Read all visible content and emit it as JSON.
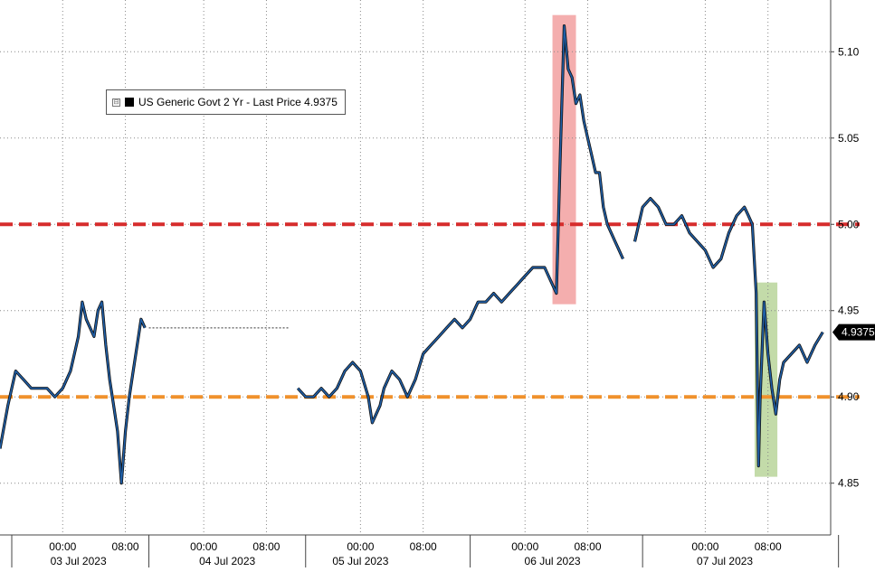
{
  "chart_data": {
    "type": "line",
    "series": [
      {
        "name": "US Generic Govt 2 Yr - Last Price 4.9375",
        "color": "#1f5fa8",
        "last_value_label": "4.9375",
        "segments": [
          [
            [
              0,
              4.87
            ],
            [
              1,
              4.895
            ],
            [
              2,
              4.915
            ],
            [
              3,
              4.91
            ],
            [
              4,
              4.905
            ],
            [
              5,
              4.905
            ],
            [
              6,
              4.905
            ],
            [
              7,
              4.9
            ],
            [
              8,
              4.905
            ],
            [
              9,
              4.915
            ],
            [
              10,
              4.935
            ],
            [
              10.5,
              4.955
            ],
            [
              11,
              4.945
            ],
            [
              11.5,
              4.94
            ],
            [
              12,
              4.935
            ],
            [
              12.5,
              4.95
            ],
            [
              13,
              4.955
            ],
            [
              13.5,
              4.93
            ],
            [
              14,
              4.91
            ],
            [
              14.5,
              4.895
            ],
            [
              15,
              4.88
            ],
            [
              15.5,
              4.85
            ],
            [
              16,
              4.88
            ],
            [
              16.5,
              4.9
            ],
            [
              17,
              4.915
            ],
            [
              17.5,
              4.93
            ],
            [
              18,
              4.945
            ],
            [
              18.5,
              4.94
            ]
          ],
          [
            [
              38,
              4.905
            ],
            [
              39,
              4.9
            ],
            [
              40,
              4.9
            ],
            [
              41,
              4.905
            ],
            [
              42,
              4.9
            ],
            [
              43,
              4.905
            ],
            [
              44,
              4.915
            ],
            [
              45,
              4.92
            ],
            [
              46,
              4.915
            ],
            [
              47,
              4.9
            ],
            [
              47.5,
              4.885
            ],
            [
              48,
              4.89
            ],
            [
              48.5,
              4.895
            ],
            [
              49,
              4.905
            ],
            [
              50,
              4.915
            ],
            [
              51,
              4.91
            ],
            [
              52,
              4.9
            ],
            [
              53,
              4.91
            ],
            [
              54,
              4.925
            ],
            [
              55,
              4.93
            ],
            [
              56,
              4.935
            ],
            [
              57,
              4.94
            ],
            [
              58,
              4.945
            ],
            [
              59,
              4.94
            ],
            [
              60,
              4.945
            ],
            [
              61,
              4.955
            ],
            [
              62,
              4.955
            ],
            [
              63,
              4.96
            ],
            [
              64,
              4.955
            ],
            [
              65,
              4.96
            ],
            [
              66,
              4.965
            ],
            [
              67,
              4.97
            ],
            [
              68,
              4.975
            ],
            [
              69,
              4.975
            ],
            [
              69.5,
              4.975
            ],
            [
              70,
              4.97
            ],
            [
              70.5,
              4.965
            ],
            [
              71,
              4.96
            ],
            [
              71.5,
              5.04
            ],
            [
              72,
              5.115
            ],
            [
              72.5,
              5.09
            ],
            [
              73,
              5.085
            ],
            [
              73.5,
              5.07
            ],
            [
              74,
              5.075
            ],
            [
              74.5,
              5.06
            ],
            [
              75,
              5.05
            ],
            [
              75.5,
              5.04
            ],
            [
              76,
              5.03
            ],
            [
              76.5,
              5.03
            ],
            [
              77,
              5.01
            ],
            [
              77.5,
              5.0
            ],
            [
              78,
              4.995
            ],
            [
              78.5,
              4.99
            ],
            [
              79,
              4.985
            ],
            [
              79.5,
              4.98
            ]
          ],
          [
            [
              81,
              4.99
            ],
            [
              82,
              5.01
            ],
            [
              83,
              5.015
            ],
            [
              84,
              5.01
            ],
            [
              85,
              5.0
            ],
            [
              86,
              5.0
            ],
            [
              87,
              5.005
            ],
            [
              88,
              4.995
            ],
            [
              89,
              4.99
            ],
            [
              90,
              4.985
            ],
            [
              91,
              4.975
            ],
            [
              92,
              4.98
            ],
            [
              93,
              4.995
            ],
            [
              94,
              5.005
            ],
            [
              95,
              5.01
            ],
            [
              95.5,
              5.005
            ],
            [
              96,
              5.0
            ],
            [
              96.5,
              4.96
            ],
            [
              96.8,
              4.86
            ],
            [
              97,
              4.9
            ],
            [
              97.5,
              4.955
            ],
            [
              98,
              4.925
            ],
            [
              98.5,
              4.905
            ],
            [
              99,
              4.89
            ],
            [
              99.5,
              4.91
            ],
            [
              100,
              4.92
            ],
            [
              101,
              4.925
            ],
            [
              102,
              4.93
            ],
            [
              103,
              4.92
            ],
            [
              104,
              4.93
            ],
            [
              105,
              4.9375
            ]
          ]
        ]
      }
    ],
    "reference_lines": [
      {
        "y": 5.0,
        "color": "#d62c2c"
      },
      {
        "y": 4.9,
        "color": "#f0912c"
      }
    ],
    "highlights": [
      {
        "x0": 70.5,
        "x1": 73.5,
        "color": "#f2a0a0"
      },
      {
        "x0": 96.3,
        "x1": 99.2,
        "color": "#b8d59a"
      }
    ],
    "flat_gap_line": {
      "x0": 19,
      "x1": 37,
      "y": 4.94
    },
    "yticks": [
      4.85,
      4.9,
      4.95,
      5.0,
      5.05,
      5.1
    ],
    "ytick_labels": [
      "4.85",
      "4.90",
      "4.95",
      "5.00",
      "5.05",
      "5.10"
    ],
    "ylim": [
      4.82,
      5.13
    ],
    "xlim": [
      0,
      106
    ],
    "time_ticks": [
      {
        "x": 8,
        "label": "00:00"
      },
      {
        "x": 16,
        "label": "08:00"
      },
      {
        "x": 26,
        "label": "00:00"
      },
      {
        "x": 34,
        "label": "08:00"
      },
      {
        "x": 46,
        "label": "00:00"
      },
      {
        "x": 54,
        "label": "08:00"
      },
      {
        "x": 67,
        "label": "00:00"
      },
      {
        "x": 75,
        "label": "08:00"
      },
      {
        "x": 90,
        "label": "00:00"
      },
      {
        "x": 98,
        "label": "08:00"
      }
    ],
    "day_separators": [
      1.5,
      19,
      39,
      60,
      82,
      107
    ],
    "day_labels": [
      {
        "x": 10,
        "label": "03 Jul 2023"
      },
      {
        "x": 29,
        "label": "04 Jul 2023"
      },
      {
        "x": 46,
        "label": "05 Jul 2023"
      },
      {
        "x": 70.5,
        "label": "06 Jul 2023"
      },
      {
        "x": 92.5,
        "label": "07 Jul 2023"
      }
    ]
  }
}
